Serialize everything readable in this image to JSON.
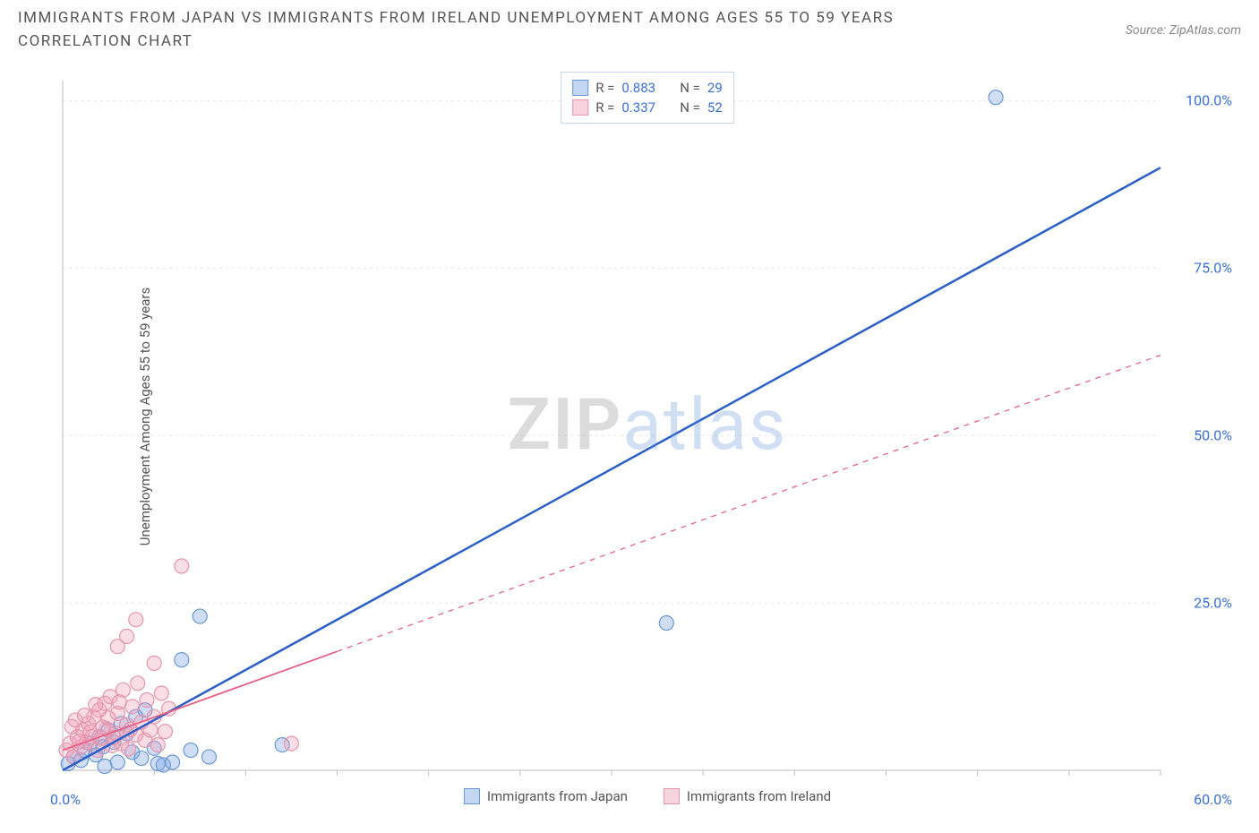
{
  "title": "IMMIGRANTS FROM JAPAN VS IMMIGRANTS FROM IRELAND UNEMPLOYMENT AMONG AGES 55 TO 59 YEARS CORRELATION CHART",
  "source": "Source: ZipAtlas.com",
  "ylabel": "Unemployment Among Ages 55 to 59 years",
  "watermark_a": "ZIP",
  "watermark_b": "atlas",
  "chart": {
    "type": "scatter",
    "background_color": "#ffffff",
    "grid_color": "#e5e5e5",
    "axis_color": "#bfbfbf",
    "xlim": [
      0,
      60
    ],
    "ylim": [
      0,
      103
    ],
    "xtick_origin": "0.0%",
    "xtick_max": "60.0%",
    "yticks": [
      {
        "v": 25,
        "label": "25.0%"
      },
      {
        "v": 50,
        "label": "50.0%"
      },
      {
        "v": 75,
        "label": "75.0%"
      },
      {
        "v": 100,
        "label": "100.0%"
      }
    ],
    "x_minor_ticks": [
      5,
      10,
      15,
      20,
      25,
      30,
      35,
      40,
      45,
      50,
      55,
      60
    ],
    "series": [
      {
        "key": "japan",
        "label": "Immigrants from Japan",
        "color_fill": "rgba(120,160,225,0.35)",
        "color_stroke": "#6a97d4",
        "swatch_fill": "#c3d6f2",
        "swatch_border": "#6a97d4",
        "R_label": "R = ",
        "R": "0.883",
        "N_label": "N = ",
        "N": "29",
        "marker_r": 8,
        "trend": {
          "solid_to_x": 60,
          "x1": 0,
          "y1": 0,
          "x2": 60,
          "y2": 90,
          "color": "#2a5fc7",
          "width": 2.5
        },
        "points": [
          [
            0.3,
            1
          ],
          [
            0.6,
            2
          ],
          [
            1,
            1.5
          ],
          [
            1.2,
            3
          ],
          [
            1.5,
            4
          ],
          [
            1.8,
            2.3
          ],
          [
            2,
            5
          ],
          [
            2.2,
            3.5
          ],
          [
            2.5,
            6
          ],
          [
            2.8,
            4.2
          ],
          [
            3,
            1.2
          ],
          [
            3.2,
            7
          ],
          [
            3.5,
            5.5
          ],
          [
            3.8,
            2.7
          ],
          [
            4,
            8
          ],
          [
            4.3,
            1.8
          ],
          [
            4.5,
            9
          ],
          [
            5,
            3.3
          ],
          [
            5.2,
            1
          ],
          [
            5.5,
            0.8
          ],
          [
            6,
            1.2
          ],
          [
            6.5,
            16.5
          ],
          [
            7,
            3
          ],
          [
            7.5,
            23
          ],
          [
            8,
            2
          ],
          [
            12,
            3.8
          ],
          [
            33,
            22
          ],
          [
            51,
            100.5
          ],
          [
            2.3,
            0.6
          ]
        ]
      },
      {
        "key": "ireland",
        "label": "Immigrants from Ireland",
        "color_fill": "rgba(240,160,180,0.35)",
        "color_stroke": "#e596ac",
        "swatch_fill": "#f6d3dd",
        "swatch_border": "#e596ac",
        "R_label": "R = ",
        "R": "0.337",
        "N_label": "N = ",
        "N": "52",
        "marker_r": 8,
        "trend": {
          "solid_to_x": 15,
          "x1": 0,
          "y1": 3,
          "x2": 60,
          "y2": 62,
          "color": "#e85f84",
          "width": 1.8
        },
        "points": [
          [
            0.2,
            3
          ],
          [
            0.4,
            4
          ],
          [
            0.6,
            2
          ],
          [
            0.8,
            5
          ],
          [
            1,
            3.5
          ],
          [
            1.1,
            6
          ],
          [
            1.3,
            4.2
          ],
          [
            1.4,
            7
          ],
          [
            1.6,
            5
          ],
          [
            1.7,
            8
          ],
          [
            1.9,
            3
          ],
          [
            2,
            9
          ],
          [
            2.1,
            4.8
          ],
          [
            2.3,
            10
          ],
          [
            2.4,
            6.2
          ],
          [
            2.6,
            11
          ],
          [
            2.7,
            3.7
          ],
          [
            2.9,
            5.5
          ],
          [
            3,
            8.5
          ],
          [
            3.2,
            4
          ],
          [
            3.3,
            12
          ],
          [
            3.5,
            6.8
          ],
          [
            3.6,
            3.2
          ],
          [
            3.8,
            9.5
          ],
          [
            4,
            5.3
          ],
          [
            4.1,
            13
          ],
          [
            4.3,
            7.2
          ],
          [
            4.5,
            4.5
          ],
          [
            4.6,
            10.5
          ],
          [
            4.8,
            6
          ],
          [
            5,
            8
          ],
          [
            5.2,
            3.8
          ],
          [
            5.4,
            11.5
          ],
          [
            5.6,
            5.8
          ],
          [
            5.8,
            9.2
          ],
          [
            3.5,
            20
          ],
          [
            4,
            22.5
          ],
          [
            3,
            18.5
          ],
          [
            6.5,
            30.5
          ],
          [
            5,
            16
          ],
          [
            0.5,
            6.5
          ],
          [
            0.7,
            7.5
          ],
          [
            0.9,
            4.3
          ],
          [
            1.2,
            8.2
          ],
          [
            1.5,
            5.7
          ],
          [
            1.8,
            9.8
          ],
          [
            2.2,
            6.4
          ],
          [
            2.5,
            7.8
          ],
          [
            2.8,
            4.9
          ],
          [
            3.1,
            10.2
          ],
          [
            12.5,
            4
          ],
          [
            3.7,
            6.1
          ]
        ]
      }
    ]
  }
}
